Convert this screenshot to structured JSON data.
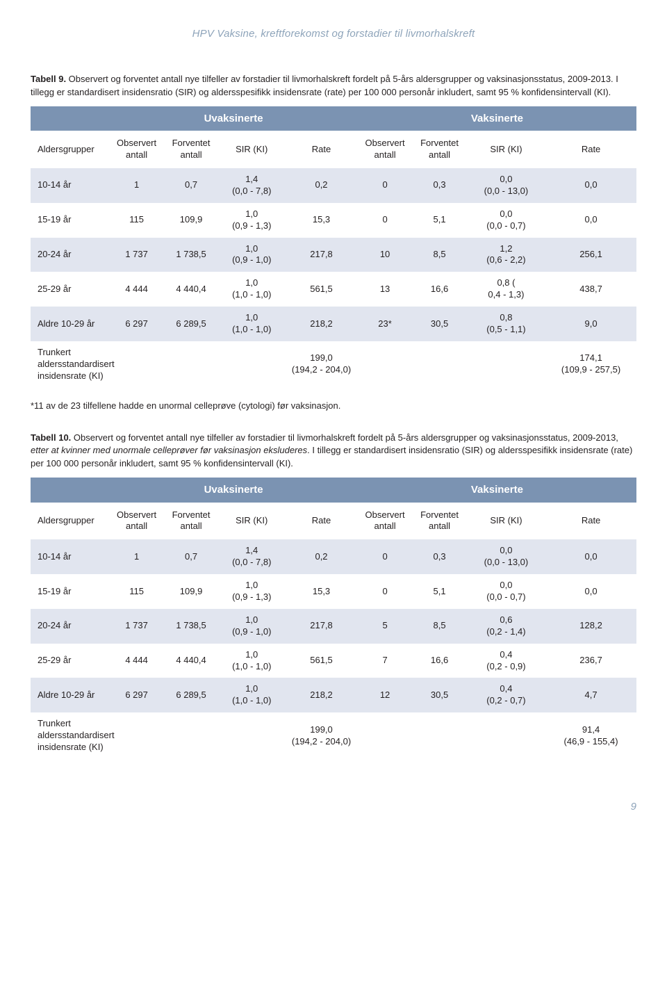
{
  "header": "HPV Vaksine, kreftforekomst og forstadier til livmorhalskreft",
  "page_number": "9",
  "colors": {
    "header_band": "#7b93b2",
    "stripe": "#e1e5ef",
    "doc_header_text": "#8ea4ba"
  },
  "table9": {
    "caption_label": "Tabell 9.",
    "caption_body": " Observert og forventet antall nye tilfeller av forstadier til livmorhalskreft fordelt på 5-års aldersgrupper og vaksinasjonsstatus, 2009-2013. I tillegg er standardisert insidensratio (SIR) og aldersspesifikk insidensrate (rate) per 100 000 personår inkludert, samt 95 % konfidensintervall (KI).",
    "group_headers": [
      "",
      "Uvaksinerte",
      "Vaksinerte"
    ],
    "col_headers": [
      "Aldersgrupper",
      "Observert antall",
      "Forventet antall",
      "SIR (KI)",
      "Rate",
      "Observert antall",
      "Forventet antall",
      "SIR (KI)",
      "Rate"
    ],
    "rows": [
      [
        "10-14 år",
        "1",
        "0,7",
        "1,4\n(0,0 - 7,8)",
        "0,2",
        "0",
        "0,3",
        "0,0\n(0,0 - 13,0)",
        "0,0"
      ],
      [
        "15-19 år",
        "115",
        "109,9",
        "1,0\n(0,9 - 1,3)",
        "15,3",
        "0",
        "5,1",
        "0,0\n(0,0 - 0,7)",
        "0,0"
      ],
      [
        "20-24 år",
        "1 737",
        "1 738,5",
        "1,0\n(0,9 - 1,0)",
        "217,8",
        "10",
        "8,5",
        "1,2\n(0,6 - 2,2)",
        "256,1"
      ],
      [
        "25-29 år",
        "4 444",
        "4 440,4",
        "1,0\n(1,0 - 1,0)",
        "561,5",
        "13",
        "16,6",
        "0,8 (\n0,4 - 1,3)",
        "438,7"
      ],
      [
        "Aldre 10-29 år",
        "6 297",
        "6 289,5",
        "1,0\n(1,0 - 1,0)",
        "218,2",
        "23*",
        "30,5",
        "0,8\n(0,5 - 1,1)",
        "9,0"
      ],
      [
        "Trunkert aldersstandardisert insidensrate (KI)",
        "",
        "",
        "",
        "199,0\n(194,2 - 204,0)",
        "",
        "",
        "",
        "174,1\n(109,9 - 257,5)"
      ]
    ],
    "footnote": "*11 av de 23 tilfellene hadde en unormal celleprøve (cytologi) før vaksinasjon."
  },
  "table10": {
    "caption_label": "Tabell 10.",
    "caption_body_a": " Observert og forventet antall nye tilfeller av forstadier til livmorhalskreft fordelt på 5-års aldersgrupper og vaksinasjonsstatus, 2009-2013, ",
    "caption_italic": "etter at kvinner med unormale celleprøver før vaksinasjon eksluderes",
    "caption_body_b": ". I tillegg er standardisert insidensratio (SIR) og aldersspesifikk insidensrate (rate) per 100 000 personår inkludert, samt 95 % konfidensintervall (KI).",
    "group_headers": [
      "",
      "Uvaksinerte",
      "Vaksinerte"
    ],
    "col_headers": [
      "Aldersgrupper",
      "Observert antall",
      "Forventet antall",
      "SIR (KI)",
      "Rate",
      "Observert antall",
      "Forventet antall",
      "SIR (KI)",
      "Rate"
    ],
    "rows": [
      [
        "10-14 år",
        "1",
        "0,7",
        "1,4\n(0,0 - 7,8)",
        "0,2",
        "0",
        "0,3",
        "0,0\n(0,0 - 13,0)",
        "0,0"
      ],
      [
        "15-19 år",
        "115",
        "109,9",
        "1,0\n(0,9 - 1,3)",
        "15,3",
        "0",
        "5,1",
        "0,0\n(0,0 - 0,7)",
        "0,0"
      ],
      [
        "20-24 år",
        "1 737",
        "1 738,5",
        "1,0\n(0,9 - 1,0)",
        "217,8",
        "5",
        "8,5",
        "0,6\n(0,2 - 1,4)",
        "128,2"
      ],
      [
        "25-29 år",
        "4 444",
        "4 440,4",
        "1,0\n(1,0 - 1,0)",
        "561,5",
        "7",
        "16,6",
        "0,4\n(0,2 - 0,9)",
        "236,7"
      ],
      [
        "Aldre 10-29 år",
        "6 297",
        "6 289,5",
        "1,0\n(1,0 - 1,0)",
        "218,2",
        "12",
        "30,5",
        "0,4\n(0,2 - 0,7)",
        "4,7"
      ],
      [
        "Trunkert aldersstandardisert insidensrate (KI)",
        "",
        "",
        "",
        "199,0\n(194,2 - 204,0)",
        "",
        "",
        "",
        "91,4\n(46,9 - 155,4)"
      ]
    ]
  }
}
